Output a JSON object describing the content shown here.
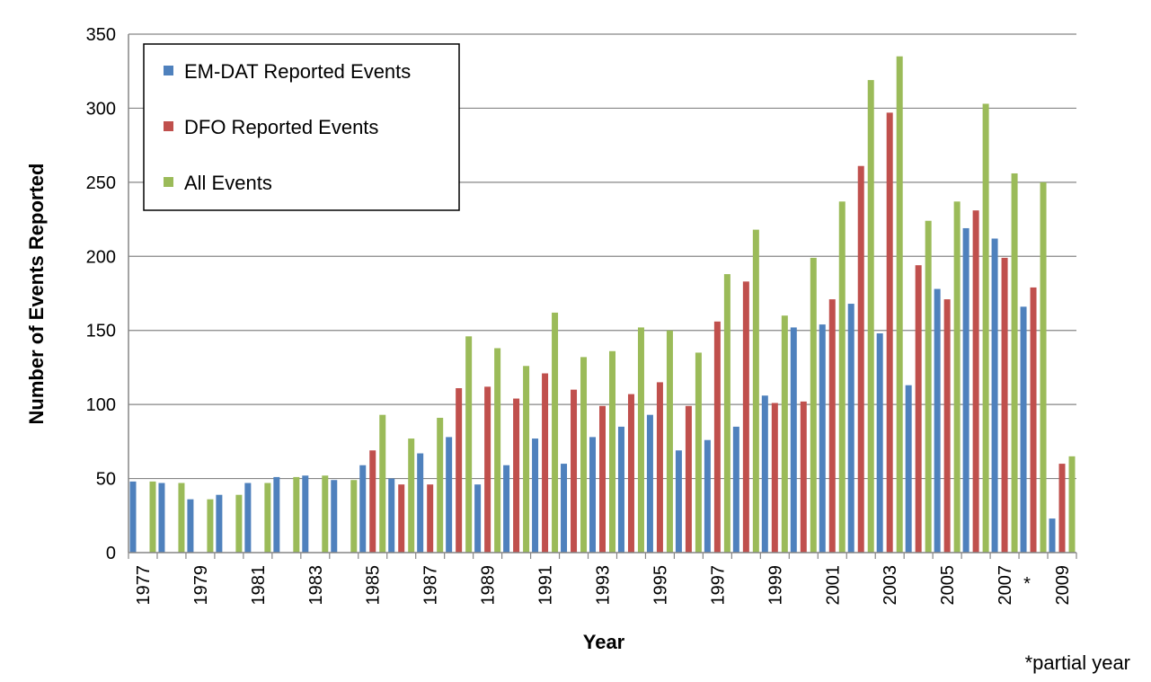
{
  "chart_data": {
    "type": "bar",
    "xlabel": "Year",
    "ylabel": "Number of Events Reported",
    "ylim": [
      0,
      350
    ],
    "yticks": [
      "0",
      "50",
      "100",
      "150",
      "200",
      "250",
      "300",
      "350"
    ],
    "grid": true,
    "legend_position": "top-left",
    "categories": [
      "1977",
      "1978",
      "1979",
      "1980",
      "1981",
      "1982",
      "1983",
      "1984",
      "1985",
      "1986",
      "1987",
      "1988",
      "1989",
      "1990",
      "1991",
      "1992",
      "1993",
      "1994",
      "1995",
      "1996",
      "1997",
      "1998",
      "1999",
      "2000",
      "2001",
      "2002",
      "2003",
      "2004",
      "2005",
      "2006",
      "2007",
      "2008",
      "2009"
    ],
    "tick_labels": [
      "1977",
      "",
      "1979",
      "",
      "1981",
      "",
      "1983",
      "",
      "1985",
      "",
      "1987",
      "",
      "1989",
      "",
      "1991",
      "",
      "1993",
      "",
      "1995",
      "",
      "1997",
      "",
      "1999",
      "",
      "2001",
      "",
      "2003",
      "",
      "2005",
      "",
      "2007",
      "",
      "2009"
    ],
    "partial_marker": "*",
    "footnote": "*partial year",
    "series": [
      {
        "name": "EM-DAT Reported Events",
        "color": "#4F81BD",
        "values": [
          48,
          47,
          36,
          39,
          47,
          51,
          52,
          49,
          59,
          50,
          67,
          78,
          46,
          59,
          77,
          60,
          78,
          85,
          93,
          69,
          76,
          85,
          106,
          152,
          154,
          168,
          148,
          113,
          178,
          219,
          212,
          166,
          23
        ]
      },
      {
        "name": "DFO Reported Events",
        "color": "#C0504D",
        "values": [
          null,
          null,
          null,
          null,
          null,
          null,
          null,
          null,
          69,
          46,
          46,
          111,
          112,
          104,
          121,
          110,
          99,
          107,
          115,
          99,
          156,
          183,
          101,
          102,
          171,
          261,
          297,
          194,
          171,
          231,
          199,
          179,
          60
        ]
      },
      {
        "name": "All Events",
        "color": "#9BBB59",
        "values": [
          48,
          47,
          36,
          39,
          47,
          51,
          52,
          49,
          93,
          77,
          91,
          146,
          138,
          126,
          162,
          132,
          136,
          152,
          150,
          135,
          188,
          218,
          160,
          199,
          237,
          319,
          335,
          224,
          237,
          303,
          256,
          250,
          65
        ]
      }
    ]
  }
}
